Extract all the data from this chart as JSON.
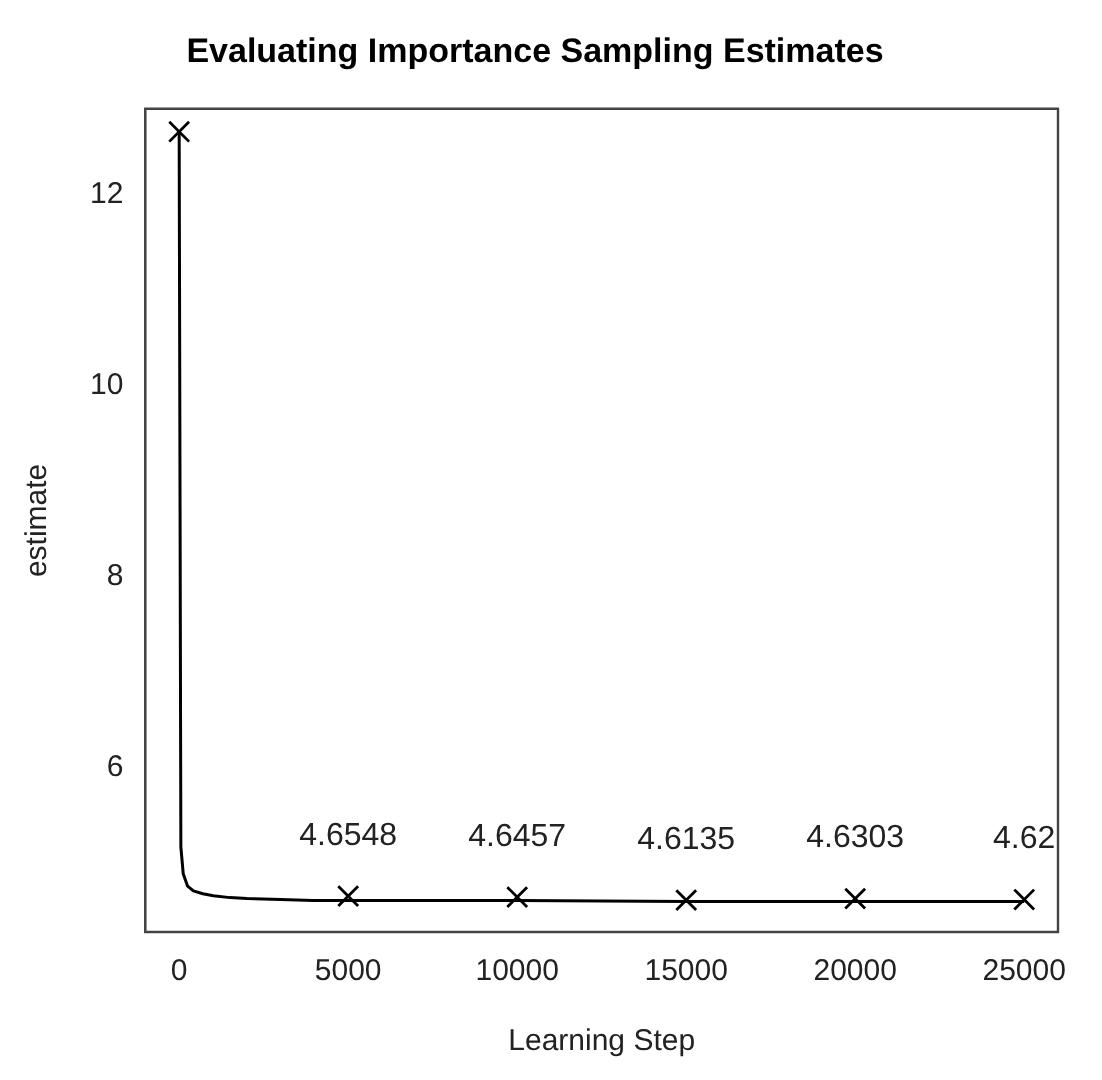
{
  "chart_data": {
    "type": "line",
    "title": "Evaluating Importance Sampling Estimates",
    "xlabel": "Learning Step",
    "ylabel": "estimate",
    "xlim": [
      -1000,
      26000
    ],
    "xticks": [
      0,
      5000,
      10000,
      15000,
      20000,
      25000
    ],
    "ylim": [
      4.28,
      12.9
    ],
    "yticks": [
      6,
      8,
      10,
      12
    ],
    "grid": false,
    "legend": false,
    "series": [
      {
        "color": "#000000",
        "marker": "none",
        "x": [
          0,
          50,
          120,
          250,
          420,
          700,
          1010,
          1500,
          2000,
          3000,
          3960,
          5000,
          10000,
          15000,
          20000,
          25000
        ],
        "values": [
          12.66,
          5.17,
          4.89,
          4.76,
          4.71,
          4.68,
          4.66,
          4.64,
          4.63,
          4.62,
          4.61,
          4.61,
          4.61,
          4.6,
          4.6,
          4.6
        ]
      },
      {
        "type": "scatter",
        "color": "#000000",
        "marker": "cross",
        "x": [
          0,
          5000,
          10000,
          15000,
          20000,
          25000
        ],
        "values": [
          12.66,
          4.6548,
          4.6457,
          4.6135,
          4.6303,
          4.62
        ],
        "value_labels": [
          null,
          "4.6548",
          "4.6457",
          "4.6135",
          "4.6303",
          "4.62"
        ]
      }
    ]
  }
}
